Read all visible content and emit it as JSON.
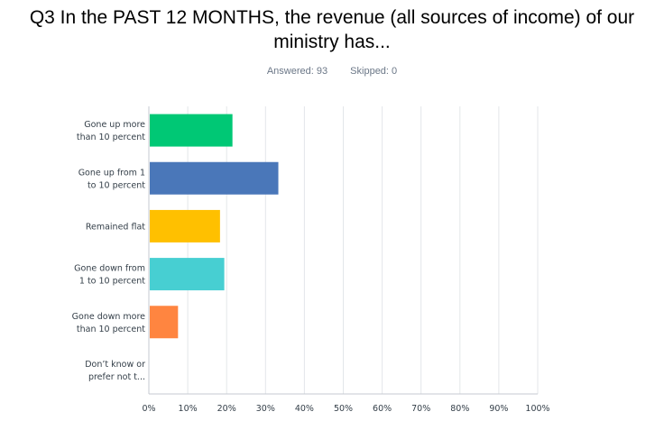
{
  "title": "Q3 In the PAST 12 MONTHS, the revenue (all sources of income) of our ministry has...",
  "answered_text": "Answered: 93",
  "skipped_text": "Skipped: 0",
  "chart_data": {
    "type": "bar",
    "orientation": "horizontal",
    "categories": [
      [
        "Gone up more",
        "than 10 percent"
      ],
      [
        "Gone up from 1",
        "to 10 percent"
      ],
      [
        "Remained flat"
      ],
      [
        "Gone down from",
        "1 to 10 percent"
      ],
      [
        "Gone down more",
        "than 10 percent"
      ],
      [
        "Don’t know or",
        "prefer not t..."
      ]
    ],
    "values": [
      21.5,
      33.3,
      18.3,
      19.4,
      7.5,
      0
    ],
    "colors": [
      "#00c875",
      "#4a77b9",
      "#ffc000",
      "#47cfd2",
      "#ff8540",
      "#8e6bc8"
    ],
    "xlim": [
      0,
      100
    ],
    "ticks": [
      "0%",
      "10%",
      "20%",
      "30%",
      "40%",
      "50%",
      "60%",
      "70%",
      "80%",
      "90%",
      "100%"
    ],
    "grid": true
  }
}
